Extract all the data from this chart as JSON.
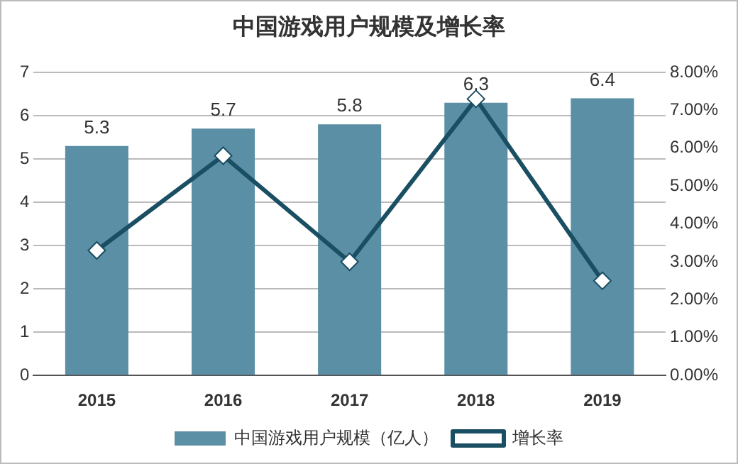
{
  "chart_data": {
    "type": "bar",
    "title": "中国游戏用户规模及增长率",
    "categories": [
      "2015",
      "2016",
      "2017",
      "2018",
      "2019"
    ],
    "series": [
      {
        "name": "中国游戏用户规模（亿人）",
        "color": "#5b8fa5",
        "values": [
          5.3,
          5.7,
          5.8,
          6.3,
          6.4
        ],
        "data_labels": true
      },
      {
        "name": "增长率",
        "type": "line",
        "axis": "y2",
        "color": "#1a4f63",
        "values": [
          3.3,
          5.8,
          3.0,
          7.3,
          2.5
        ],
        "marker": "diamond"
      }
    ],
    "ylim": [
      0,
      7
    ],
    "yticks": [
      0,
      1,
      2,
      3,
      4,
      5,
      6,
      7
    ],
    "y2lim": [
      0,
      8
    ],
    "y2ticks": [
      {
        "value": 0,
        "label": "0.00%"
      },
      {
        "value": 1,
        "label": "1.00%"
      },
      {
        "value": 2,
        "label": "2.00%"
      },
      {
        "value": 3,
        "label": "3.00%"
      },
      {
        "value": 4,
        "label": "4.00%"
      },
      {
        "value": 5,
        "label": "5.00%"
      },
      {
        "value": 6,
        "label": "6.00%"
      },
      {
        "value": 7,
        "label": "7.00%"
      },
      {
        "value": 8,
        "label": "8.00%"
      }
    ],
    "grid": "y",
    "legend": "bottom"
  }
}
